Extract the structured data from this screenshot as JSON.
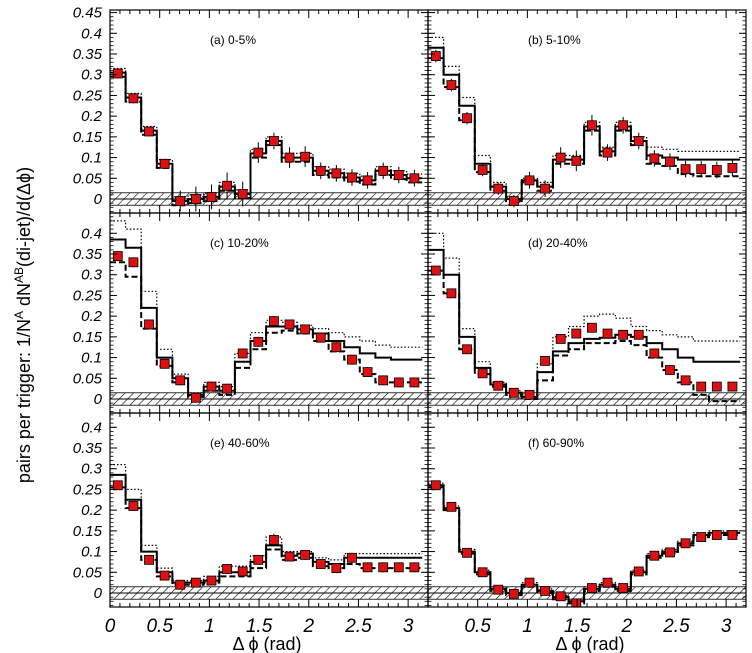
{
  "chart_data": {
    "type": "scatter",
    "ylabel_parts": {
      "prefix": "pairs per trigger: 1/N",
      "sup1": "A",
      "mid": " dN",
      "sup2": "AB",
      "suffix": "(di-jet)/d(Δϕ)"
    },
    "xlabel": "Δ ϕ (rad)",
    "xlim": [
      0,
      3.2
    ],
    "ylim": [
      -0.04,
      0.45
    ],
    "ytick_labels_top": [
      "0.45",
      "0.4",
      "0.35",
      "0.3",
      "0.25",
      "0.2",
      "0.15",
      "0.1",
      "0.05",
      "0"
    ],
    "ytick_labels": [
      "0.4",
      "0.35",
      "0.3",
      "0.25",
      "0.2",
      "0.15",
      "0.1",
      "0.05",
      "0"
    ],
    "ytick_values_top": [
      0.45,
      0.4,
      0.35,
      0.3,
      0.25,
      0.2,
      0.15,
      0.1,
      0.05,
      0
    ],
    "ytick_values": [
      0.4,
      0.35,
      0.3,
      0.25,
      0.2,
      0.15,
      0.1,
      0.05,
      0
    ],
    "xtick_labels_left": [
      "0",
      "0.5",
      "1",
      "1.5",
      "2",
      "2.5",
      "3"
    ],
    "xtick_values_left": [
      0,
      0.5,
      1,
      1.5,
      2,
      2.5,
      3
    ],
    "xtick_labels_right": [
      "0.5",
      "1",
      "1.5",
      "2",
      "2.5",
      "3"
    ],
    "xtick_values_right": [
      0.5,
      1,
      1.5,
      2,
      2.5,
      3
    ],
    "x": [
      0.0785,
      0.2356,
      0.3927,
      0.5498,
      0.7069,
      0.864,
      1.0211,
      1.1782,
      1.3353,
      1.4924,
      1.6495,
      1.8066,
      1.9637,
      2.1208,
      2.2779,
      2.435,
      2.5921,
      2.7492,
      2.9063,
      3.0634
    ],
    "panels": [
      {
        "label": "(a) 0-5%",
        "points": [
          0.303,
          0.243,
          0.163,
          0.085,
          -0.005,
          0.0,
          0.005,
          0.032,
          0.012,
          0.112,
          0.14,
          0.1,
          0.102,
          0.068,
          0.062,
          0.052,
          0.045,
          0.068,
          0.058,
          0.05
        ],
        "stat_err": [
          0.012,
          0.012,
          0.012,
          0.012,
          0.025,
          0.03,
          0.03,
          0.032,
          0.03,
          0.025,
          0.02,
          0.025,
          0.025,
          0.02,
          0.02,
          0.02,
          0.02,
          0.02,
          0.02,
          0.02
        ],
        "model": [
          0.305,
          0.245,
          0.165,
          0.085,
          -0.005,
          0.0,
          0.005,
          0.03,
          0.012,
          0.11,
          0.14,
          0.1,
          0.1,
          0.068,
          0.062,
          0.052,
          0.045,
          0.068,
          0.058,
          0.05
        ],
        "sys_upper": [
          0.315,
          0.255,
          0.175,
          0.095,
          0.005,
          0.01,
          0.015,
          0.04,
          0.022,
          0.12,
          0.15,
          0.11,
          0.11,
          0.078,
          0.072,
          0.062,
          0.055,
          0.078,
          0.068,
          0.06
        ],
        "sys_lower": [
          0.295,
          0.235,
          0.155,
          0.075,
          -0.015,
          -0.01,
          -0.005,
          0.02,
          0.002,
          0.1,
          0.13,
          0.09,
          0.09,
          0.058,
          0.052,
          0.042,
          0.035,
          0.058,
          0.048,
          0.04
        ]
      },
      {
        "label": "(b) 5-10%",
        "points": [
          0.345,
          0.275,
          0.195,
          0.07,
          0.025,
          -0.005,
          0.045,
          0.025,
          0.1,
          0.092,
          0.178,
          0.112,
          0.178,
          0.14,
          0.098,
          0.09,
          0.072,
          0.072,
          0.07,
          0.075
        ],
        "stat_err": [
          0.015,
          0.015,
          0.015,
          0.015,
          0.015,
          0.015,
          0.02,
          0.02,
          0.025,
          0.025,
          0.025,
          0.02,
          0.02,
          0.02,
          0.02,
          0.02,
          0.02,
          0.02,
          0.02,
          0.02
        ],
        "model": [
          0.365,
          0.3,
          0.225,
          0.085,
          0.03,
          0.0,
          0.045,
          0.03,
          0.095,
          0.095,
          0.175,
          0.115,
          0.175,
          0.14,
          0.105,
          0.1,
          0.095,
          0.095,
          0.095,
          0.095
        ],
        "sys_upper": [
          0.39,
          0.32,
          0.245,
          0.105,
          0.04,
          0.005,
          0.05,
          0.04,
          0.105,
          0.105,
          0.185,
          0.125,
          0.185,
          0.15,
          0.125,
          0.12,
          0.115,
          0.115,
          0.115,
          0.115
        ],
        "sys_lower": [
          0.34,
          0.27,
          0.19,
          0.065,
          0.02,
          -0.005,
          0.04,
          0.02,
          0.085,
          0.085,
          0.165,
          0.105,
          0.165,
          0.13,
          0.085,
          0.08,
          0.06,
          0.055,
          0.055,
          0.055
        ]
      },
      {
        "label": "(c) 10-20%",
        "points": [
          0.345,
          0.33,
          0.18,
          0.085,
          0.045,
          0.003,
          0.03,
          0.025,
          0.11,
          0.138,
          0.188,
          0.18,
          0.168,
          0.148,
          0.125,
          0.095,
          0.065,
          0.045,
          0.04,
          0.04
        ],
        "stat_err": [
          0.012,
          0.012,
          0.012,
          0.012,
          0.012,
          0.012,
          0.012,
          0.012,
          0.012,
          0.012,
          0.012,
          0.012,
          0.012,
          0.012,
          0.012,
          0.012,
          0.012,
          0.012,
          0.012,
          0.012
        ],
        "model": [
          0.385,
          0.365,
          0.22,
          0.1,
          0.05,
          0.01,
          0.03,
          0.02,
          0.09,
          0.14,
          0.175,
          0.175,
          0.168,
          0.158,
          0.14,
          0.125,
          0.11,
          0.1,
          0.095,
          0.095
        ],
        "sys_upper": [
          0.43,
          0.41,
          0.26,
          0.12,
          0.06,
          0.015,
          0.04,
          0.03,
          0.11,
          0.16,
          0.19,
          0.185,
          0.178,
          0.17,
          0.16,
          0.15,
          0.14,
          0.13,
          0.125,
          0.125
        ],
        "sys_lower": [
          0.33,
          0.295,
          0.17,
          0.08,
          0.04,
          0.005,
          0.02,
          0.01,
          0.075,
          0.12,
          0.16,
          0.165,
          0.158,
          0.14,
          0.115,
          0.095,
          0.06,
          0.04,
          0.04,
          0.04
        ]
      },
      {
        "label": "(d) 20-40%",
        "points": [
          0.31,
          0.255,
          0.12,
          0.062,
          0.032,
          0.015,
          0.01,
          0.092,
          0.145,
          0.158,
          0.172,
          0.158,
          0.155,
          0.155,
          0.11,
          0.07,
          0.045,
          0.03,
          0.03,
          0.03
        ],
        "stat_err": [
          0.01,
          0.01,
          0.01,
          0.01,
          0.01,
          0.01,
          0.01,
          0.01,
          0.01,
          0.01,
          0.01,
          0.01,
          0.01,
          0.01,
          0.01,
          0.01,
          0.01,
          0.01,
          0.01,
          0.01
        ],
        "model": [
          0.36,
          0.3,
          0.15,
          0.075,
          0.035,
          0.015,
          0.005,
          0.065,
          0.115,
          0.135,
          0.145,
          0.148,
          0.155,
          0.15,
          0.135,
          0.12,
          0.1,
          0.09,
          0.09,
          0.09
        ],
        "sys_upper": [
          0.4,
          0.34,
          0.17,
          0.09,
          0.04,
          0.02,
          0.01,
          0.085,
          0.15,
          0.175,
          0.2,
          0.205,
          0.195,
          0.175,
          0.165,
          0.155,
          0.15,
          0.14,
          0.14,
          0.14
        ],
        "sys_lower": [
          0.31,
          0.255,
          0.12,
          0.06,
          0.03,
          0.01,
          0.0,
          0.045,
          0.105,
          0.12,
          0.135,
          0.135,
          0.14,
          0.13,
          0.1,
          0.07,
          0.04,
          0.01,
          -0.005,
          -0.005
        ]
      },
      {
        "label": "(e) 40-60%",
        "points": [
          0.26,
          0.21,
          0.08,
          0.042,
          0.02,
          0.025,
          0.03,
          0.058,
          0.052,
          0.08,
          0.128,
          0.088,
          0.092,
          0.07,
          0.06,
          0.085,
          0.062,
          0.062,
          0.062,
          0.062
        ],
        "stat_err": [
          0.01,
          0.01,
          0.01,
          0.01,
          0.01,
          0.01,
          0.01,
          0.012,
          0.012,
          0.012,
          0.015,
          0.012,
          0.012,
          0.012,
          0.012,
          0.012,
          0.012,
          0.012,
          0.012,
          0.012
        ],
        "model": [
          0.285,
          0.225,
          0.1,
          0.05,
          0.025,
          0.025,
          0.03,
          0.05,
          0.05,
          0.075,
          0.115,
          0.09,
          0.095,
          0.075,
          0.07,
          0.085,
          0.085,
          0.085,
          0.085,
          0.085
        ],
        "sys_upper": [
          0.31,
          0.25,
          0.115,
          0.06,
          0.03,
          0.03,
          0.04,
          0.065,
          0.065,
          0.09,
          0.135,
          0.1,
          0.1,
          0.085,
          0.08,
          0.095,
          0.095,
          0.095,
          0.095,
          0.095
        ],
        "sys_lower": [
          0.255,
          0.205,
          0.08,
          0.04,
          0.02,
          0.02,
          0.025,
          0.04,
          0.04,
          0.06,
          0.105,
          0.08,
          0.085,
          0.065,
          0.06,
          0.07,
          0.06,
          0.06,
          0.06,
          0.06
        ]
      },
      {
        "label": "(f) 60-90%",
        "points": [
          0.26,
          0.208,
          0.097,
          0.05,
          0.008,
          -0.002,
          0.025,
          0.005,
          -0.008,
          -0.025,
          0.012,
          0.025,
          0.012,
          0.052,
          0.09,
          0.098,
          0.12,
          0.135,
          0.14,
          0.14
        ],
        "stat_err": [
          0.006,
          0.006,
          0.006,
          0.006,
          0.006,
          0.006,
          0.008,
          0.008,
          0.008,
          0.01,
          0.01,
          0.01,
          0.008,
          0.008,
          0.006,
          0.006,
          0.006,
          0.006,
          0.006,
          0.006
        ],
        "model": [
          0.26,
          0.205,
          0.1,
          0.05,
          0.01,
          0.0,
          0.02,
          0.005,
          -0.01,
          -0.02,
          0.01,
          0.02,
          0.01,
          0.05,
          0.09,
          0.1,
          0.12,
          0.14,
          0.145,
          0.145
        ],
        "sys_upper": [
          0.265,
          0.21,
          0.105,
          0.055,
          0.015,
          0.005,
          0.025,
          0.01,
          -0.005,
          -0.015,
          0.015,
          0.025,
          0.015,
          0.055,
          0.095,
          0.105,
          0.125,
          0.145,
          0.15,
          0.15
        ],
        "sys_lower": [
          0.255,
          0.2,
          0.095,
          0.045,
          0.005,
          -0.005,
          0.015,
          0.0,
          -0.015,
          -0.025,
          0.005,
          0.015,
          0.005,
          0.045,
          0.085,
          0.095,
          0.115,
          0.135,
          0.14,
          0.14
        ]
      }
    ],
    "zero_band": [
      -0.015,
      0.015
    ],
    "colors": {
      "points": "#dd1111",
      "model_line": "#000000",
      "band_hatch": "#000000"
    },
    "grid": false,
    "legend": "none"
  }
}
